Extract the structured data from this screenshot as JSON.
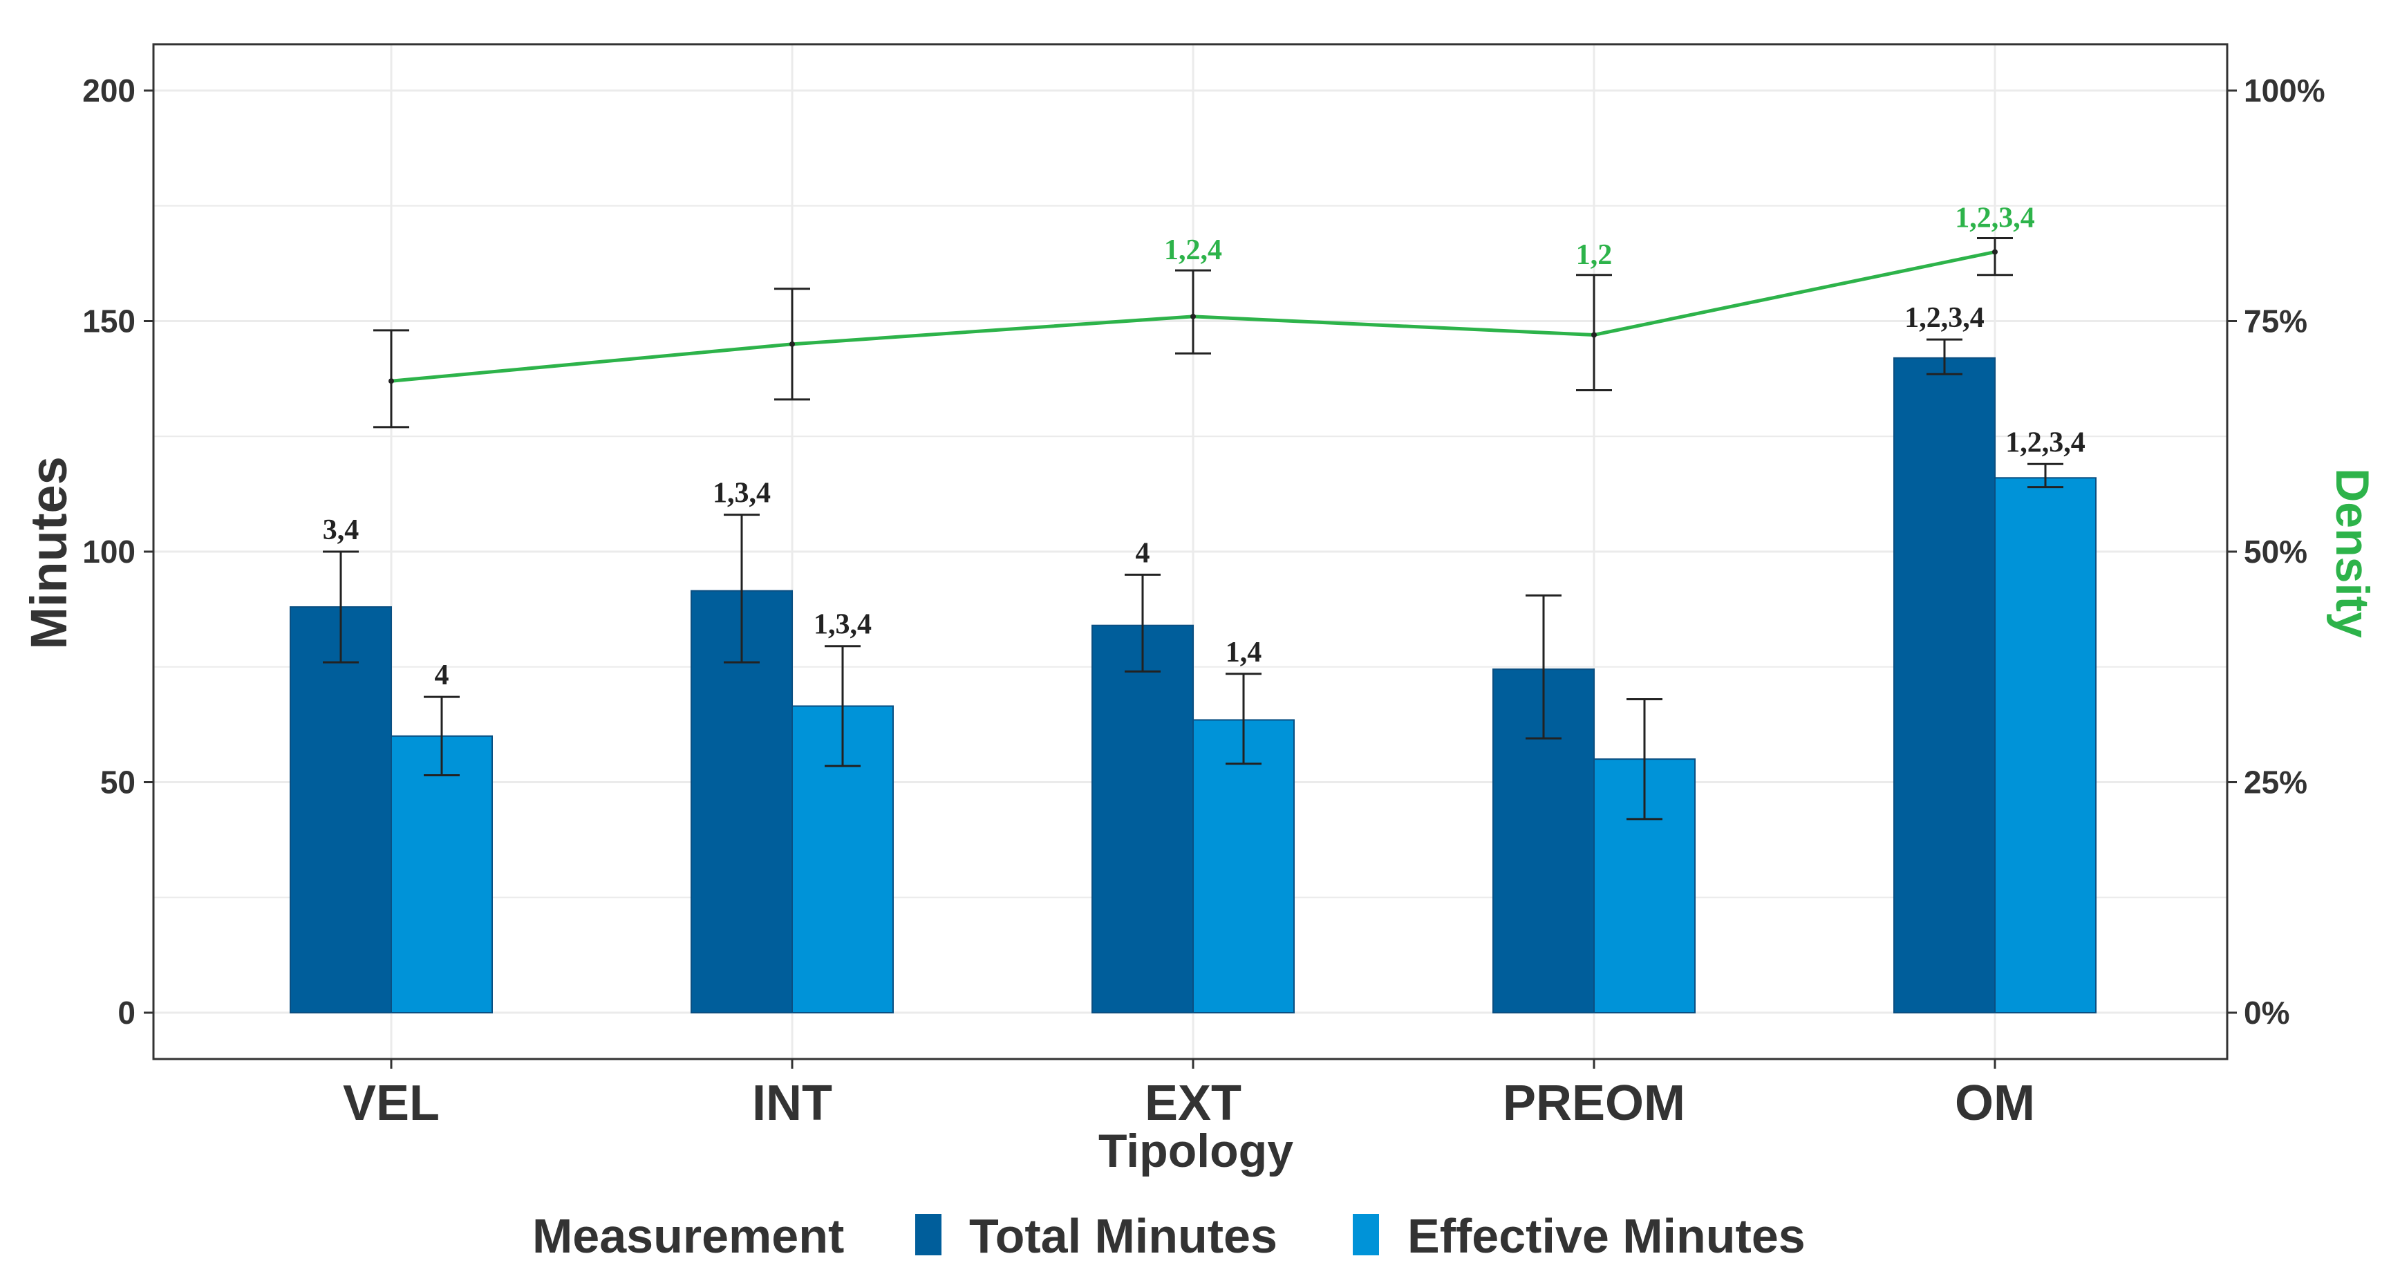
{
  "chart_data": {
    "type": "bar",
    "categories": [
      "VEL",
      "INT",
      "EXT",
      "PREOM",
      "OM"
    ],
    "xlabel": "Tipology",
    "ylabel": "Minutes",
    "y2label": "Density",
    "ylim": [
      -10,
      210
    ],
    "yticks": [
      0,
      50,
      100,
      150,
      200
    ],
    "y2ticks": [
      "0%",
      "25%",
      "50%",
      "75%",
      "100%"
    ],
    "y2range_percent": [
      0,
      100
    ],
    "grid": true,
    "legend": {
      "title": "Measurement",
      "position": "bottom",
      "entries": [
        "Total Minutes",
        "Effective Minutes"
      ]
    },
    "series": [
      {
        "name": "Total Minutes",
        "color": "#005e9b",
        "values": [
          88,
          91.5,
          84,
          74.5,
          142
        ],
        "error_low": [
          76,
          76,
          74,
          59.5,
          138.5
        ],
        "error_high": [
          100,
          108,
          95,
          90.5,
          146
        ],
        "labels": [
          "3,4",
          "1,3,4",
          "4",
          "",
          "1,2,3,4"
        ]
      },
      {
        "name": "Effective Minutes",
        "color": "#0093d8",
        "values": [
          60,
          66.5,
          63.5,
          55,
          116
        ],
        "error_low": [
          51.5,
          53.5,
          54,
          42,
          114
        ],
        "error_high": [
          68.5,
          79.5,
          73.5,
          68,
          119
        ],
        "labels": [
          "4",
          "1,3,4",
          "1,4",
          "",
          "1,2,3,4"
        ]
      }
    ],
    "density": {
      "name": "Density",
      "color": "#2db34a",
      "values_percent": [
        68.5,
        72.5,
        75.5,
        73.5,
        82.5
      ],
      "error_low_percent": [
        63.5,
        66.5,
        71.5,
        67.5,
        80
      ],
      "error_high_percent": [
        74,
        78.5,
        80.5,
        80,
        84
      ],
      "labels": [
        "",
        "",
        "1,2,4",
        "1,2",
        "1,2,3,4"
      ]
    }
  }
}
